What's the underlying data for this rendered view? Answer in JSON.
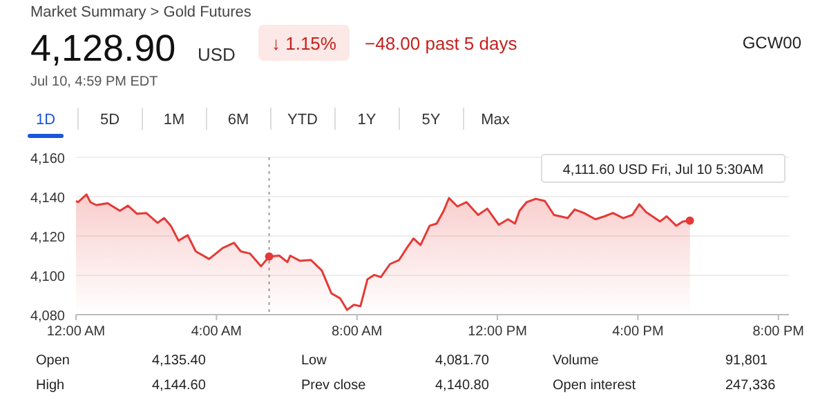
{
  "chart_data": {
    "type": "area",
    "title": "Market Summary > Gold Futures",
    "subtitle": "Jul 10, 4:59 PM EDT",
    "annotations": [
      "4,128.90",
      "USD",
      "↓ 1.15%",
      "−48.00 past 5 days",
      "GCW00",
      "1D",
      "5D",
      "1M",
      "6M",
      "YTD",
      "1Y",
      "5Y",
      "Max",
      "4,111.60 USD  Fri, Jul 10 5:30AM",
      "Open",
      "4,135.40",
      "Low",
      "4,081.70",
      "Volume",
      "91,801",
      "High",
      "4,144.60",
      "Prev close",
      "4,140.80",
      "Open interest",
      "247,336"
    ],
    "series": [
      {
        "color": "#e53935",
        "x": [
          0,
          0.06,
          0.3,
          0.41,
          0.58,
          0.9,
          1.25,
          1.48,
          1.74,
          2.0,
          2.32,
          2.51,
          2.7,
          2.92,
          3.18,
          3.41,
          3.79,
          4.18,
          4.5,
          4.69,
          4.95,
          5.27,
          5.5,
          5.79,
          6.02,
          6.1,
          6.37,
          6.69,
          7.0,
          7.27,
          7.52,
          7.72,
          7.91,
          8.1,
          8.3,
          8.49,
          8.68,
          8.94,
          9.2,
          9.42,
          9.61,
          9.81,
          10.07,
          10.27,
          10.47,
          10.62,
          10.86,
          11.12,
          11.45,
          11.71,
          12.04,
          12.3,
          12.5,
          12.63,
          12.83,
          13.09,
          13.35,
          13.61,
          14.0,
          14.2,
          14.46,
          14.79,
          15.05,
          15.29,
          15.58,
          15.84,
          16.04,
          16.23,
          16.63,
          16.82,
          17.09,
          17.28,
          17.48
        ],
        "values": [
          4137.8,
          4137.2,
          4141.1,
          4137.2,
          4135.7,
          4136.7,
          4132.8,
          4135.4,
          4131.3,
          4131.7,
          4126.7,
          4129.1,
          4125.2,
          4117.6,
          4120.4,
          4112.2,
          4108.3,
          4113.9,
          4116.5,
          4112.2,
          4111.1,
          4104.6,
          4109.6,
          4110,
          4106.7,
          4110,
          4107.4,
          4107.8,
          4102.4,
          4090.9,
          4088.3,
          4082.4,
          4085,
          4084.3,
          4098,
          4100.2,
          4099.1,
          4105.7,
          4107.8,
          4113.9,
          4118.7,
          4115.4,
          4125.2,
          4126.3,
          4132.8,
          4139.3,
          4135,
          4137.2,
          4130.7,
          4133.9,
          4125.7,
          4128.5,
          4126.3,
          4132.8,
          4137.2,
          4138.9,
          4137.8,
          4130.7,
          4129.1,
          4133.5,
          4131.7,
          4128.5,
          4130,
          4131.7,
          4129.1,
          4130.7,
          4136.1,
          4132.2,
          4127.4,
          4130,
          4125.2,
          4127.4,
          4127.8
        ]
      }
    ],
    "xlim": [
      0,
      20.3
    ],
    "xticks": [
      {
        "value": 0,
        "label": "12:00 AM"
      },
      {
        "value": 4,
        "label": "4:00 AM"
      },
      {
        "value": 8,
        "label": "8:00 AM"
      },
      {
        "value": 12,
        "label": "12:00 PM"
      },
      {
        "value": 16,
        "label": "4:00 PM"
      },
      {
        "value": 20,
        "label": "8:00 PM"
      }
    ],
    "ylim": [
      4080,
      4160
    ],
    "yticks": [
      {
        "value": 4080,
        "label": "4,080"
      },
      {
        "value": 4100,
        "label": "4,100"
      },
      {
        "value": 4120,
        "label": "4,120"
      },
      {
        "value": 4140,
        "label": "4,140"
      },
      {
        "value": 4160,
        "label": "4,160"
      }
    ],
    "grid": "y",
    "marker": "none",
    "ref_lines": [
      {
        "axis": "x",
        "value": 5.5,
        "label": null,
        "color": "#9e9e9e",
        "line_style": "dotted"
      }
    ]
  }
}
